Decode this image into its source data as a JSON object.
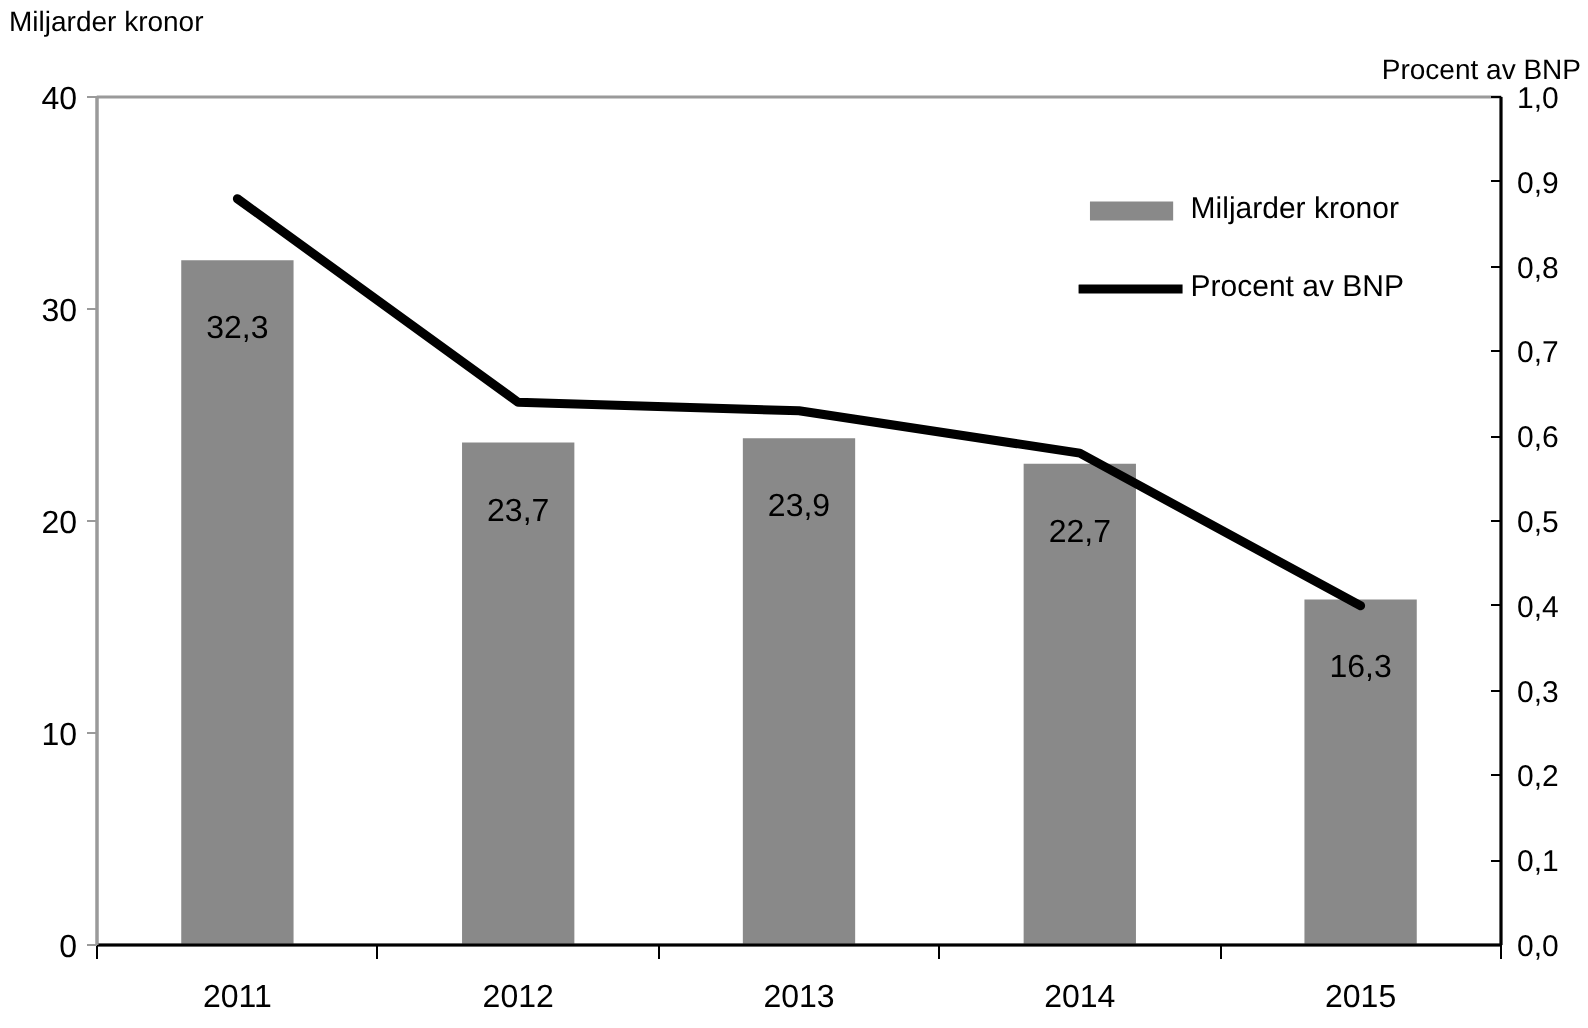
{
  "chart_data": {
    "type": "bar",
    "categories": [
      "2011",
      "2012",
      "2013",
      "2014",
      "2015"
    ],
    "ylabel": "Miljarder kronor",
    "y2label": "Procent av BNP",
    "series": [
      {
        "name": "Miljarder kronor",
        "color": "#898989",
        "values": [
          32.3,
          23.7,
          23.9,
          22.7,
          16.3
        ],
        "value_labels": [
          "32,3",
          "23,7",
          "23,9",
          "22,7",
          "16,3"
        ]
      },
      {
        "name": "Procent av BNP",
        "type": "line",
        "axis": "y2",
        "color": "#000000",
        "values": [
          0.88,
          0.64,
          0.63,
          0.58,
          0.4
        ]
      }
    ],
    "ylim": [
      0,
      40
    ],
    "yticks": [
      0,
      10,
      20,
      30,
      40
    ],
    "y2lim": [
      0,
      1.0
    ],
    "y2ticks": [
      {
        "value": 0,
        "label": "0,0"
      },
      {
        "value": 0.1,
        "label": "0,1"
      },
      {
        "value": 0.2,
        "label": "0,2"
      },
      {
        "value": 0.3,
        "label": "0,3"
      },
      {
        "value": 0.4,
        "label": "0,4"
      },
      {
        "value": 0.5,
        "label": "0,5"
      },
      {
        "value": 0.6,
        "label": "0,6"
      },
      {
        "value": 0.7,
        "label": "0,7"
      },
      {
        "value": 0.8,
        "label": "0,8"
      },
      {
        "value": 0.9,
        "label": "0,9"
      },
      {
        "value": 1.0,
        "label": "1,0"
      }
    ],
    "legend": "top right",
    "grid": false
  }
}
